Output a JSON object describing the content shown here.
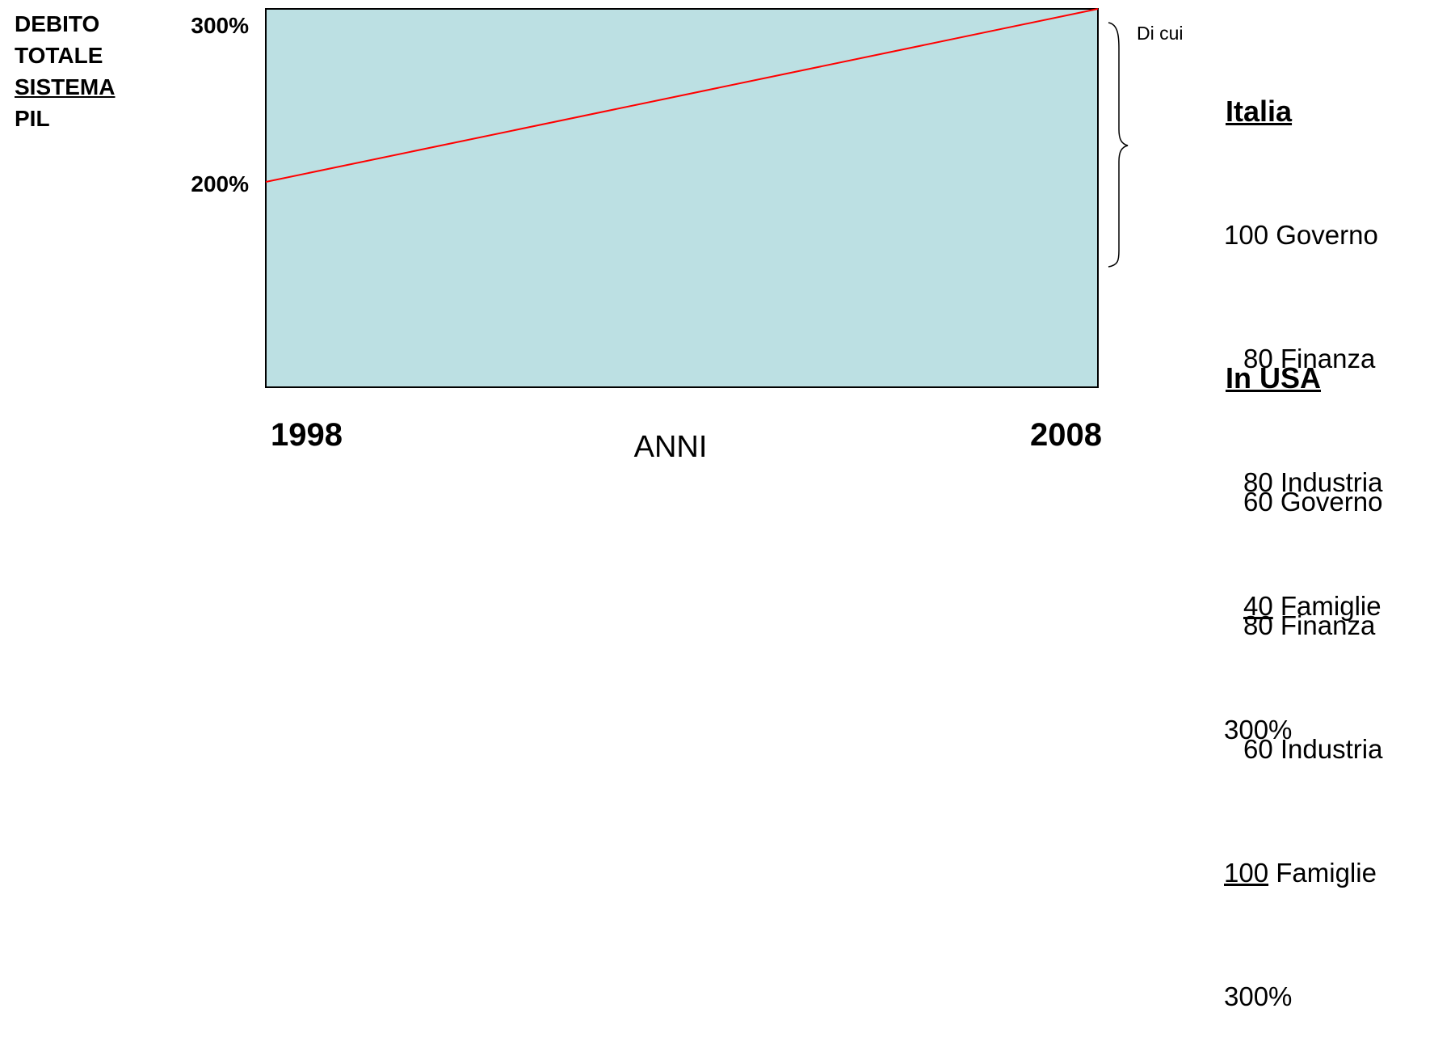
{
  "y_axis_label": {
    "line1": "DEBITO",
    "line2": "TOTALE",
    "line3": "SISTEMA",
    "line4": "PIL"
  },
  "chart_data": {
    "type": "line",
    "xlabel": "ANNI",
    "x_ticks": [
      "1998",
      "2008"
    ],
    "y_ticks": [
      "200%",
      "300%"
    ],
    "x": [
      1998,
      2008
    ],
    "series": [
      {
        "values": [
          200,
          300
        ],
        "color": "#ff0000"
      }
    ],
    "plot_background": "#bce0e3"
  },
  "bracket_label": "Di cui",
  "italia": {
    "title": "Italia",
    "rows": [
      {
        "value": "100",
        "label": "Governo"
      },
      {
        "value": "80",
        "label": "Finanza"
      },
      {
        "value": "80",
        "label": "Industria"
      },
      {
        "value": "40",
        "label": "Famiglie"
      }
    ],
    "total": "300%"
  },
  "usa": {
    "title": "In USA",
    "rows": [
      {
        "value": "60",
        "label": "Governo"
      },
      {
        "value": "80",
        "label": "Finanza"
      },
      {
        "value": "60",
        "label": "Industria"
      },
      {
        "value": "100",
        "label": "Famiglie"
      }
    ],
    "total": "300%"
  }
}
